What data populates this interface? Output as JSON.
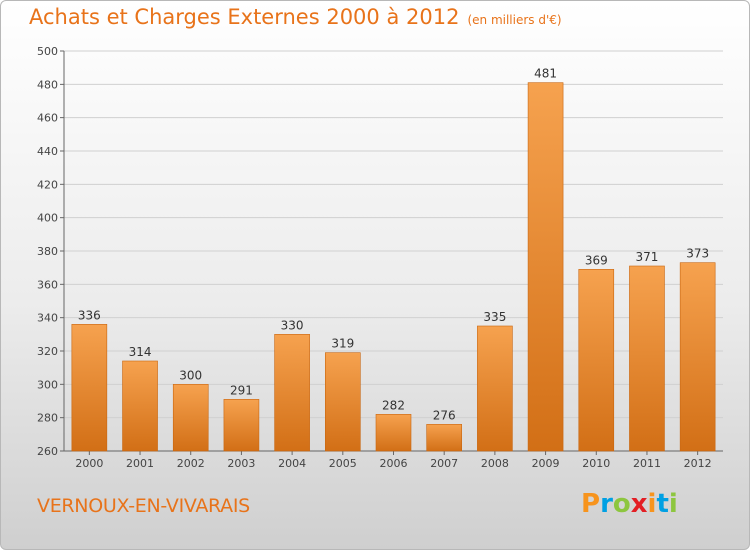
{
  "header": {
    "title": "Achats et Charges Externes 2000 à 2012",
    "unit": "(en milliers d'€)"
  },
  "footer": {
    "commune": "VERNOUX-EN-VIVARAIS",
    "logo_letters": [
      "P",
      "r",
      "o",
      "x",
      "i",
      "t",
      "i"
    ],
    "logo_colors": [
      "#f7941d",
      "#00a0e3",
      "#8dc63f",
      "#e31e24",
      "#f7941d",
      "#00a0e3",
      "#8dc63f"
    ]
  },
  "chart_data": {
    "type": "bar",
    "title": "Achats et Charges Externes 2000 à 2012",
    "subtitle": "(en milliers d'€)",
    "categories": [
      "2000",
      "2001",
      "2002",
      "2003",
      "2004",
      "2005",
      "2006",
      "2007",
      "2008",
      "2009",
      "2010",
      "2011",
      "2012"
    ],
    "values": [
      336,
      314,
      300,
      291,
      330,
      319,
      282,
      276,
      335,
      481,
      369,
      371,
      373
    ],
    "ylim": [
      260,
      500
    ],
    "yticks": [
      260,
      280,
      300,
      320,
      340,
      360,
      380,
      400,
      420,
      440,
      460,
      480,
      500
    ],
    "grid": true,
    "bar_color": "#f39a3d",
    "bar_color_dark": "#d26f16"
  }
}
